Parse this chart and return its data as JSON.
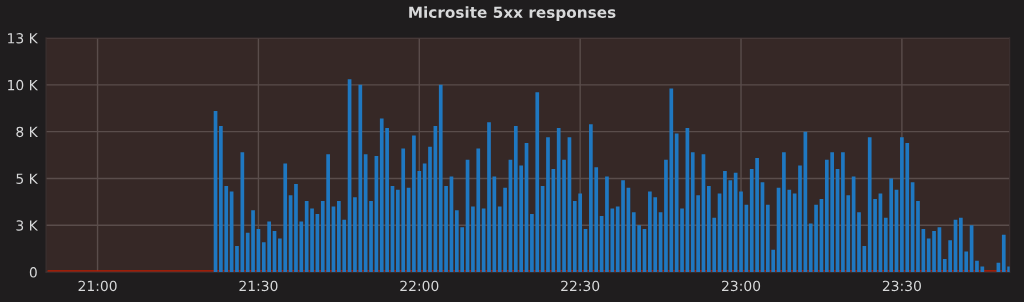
{
  "chart_data": {
    "type": "bar",
    "title": "Microsite 5xx responses",
    "x": [
      21.3667,
      21.3833,
      21.4,
      21.4167,
      21.4333,
      21.45,
      21.4667,
      21.4833,
      21.5,
      21.5167,
      21.5333,
      21.55,
      21.5667,
      21.5833,
      21.6,
      21.6167,
      21.6333,
      21.65,
      21.6667,
      21.6833,
      21.7,
      21.7167,
      21.7333,
      21.75,
      21.7667,
      21.7833,
      21.8,
      21.8167,
      21.8333,
      21.85,
      21.8667,
      21.8833,
      21.9,
      21.9167,
      21.9333,
      21.95,
      21.9667,
      21.9833,
      22.0,
      22.0167,
      22.0333,
      22.05,
      22.0667,
      22.0833,
      22.1,
      22.1167,
      22.1333,
      22.15,
      22.1667,
      22.1833,
      22.2,
      22.2167,
      22.2333,
      22.25,
      22.2667,
      22.2833,
      22.3,
      22.3167,
      22.3333,
      22.35,
      22.3667,
      22.3833,
      22.4,
      22.4167,
      22.4333,
      22.45,
      22.4667,
      22.4833,
      22.5,
      22.5167,
      22.5333,
      22.55,
      22.5667,
      22.5833,
      22.6,
      22.6167,
      22.6333,
      22.65,
      22.6667,
      22.6833,
      22.7,
      22.7167,
      22.7333,
      22.75,
      22.7667,
      22.7833,
      22.8,
      22.8167,
      22.8333,
      22.85,
      22.8667,
      22.8833,
      22.9,
      22.9167,
      22.9333,
      22.95,
      22.9667,
      22.9833,
      23.0,
      23.0167,
      23.0333,
      23.05,
      23.0667,
      23.0833,
      23.1,
      23.1167,
      23.1333,
      23.15,
      23.1667,
      23.1833,
      23.2,
      23.2167,
      23.2333,
      23.25,
      23.2667,
      23.2833,
      23.3,
      23.3167,
      23.3333,
      23.35,
      23.3667,
      23.3833,
      23.4,
      23.4167,
      23.4333,
      23.45,
      23.4667,
      23.4833,
      23.5,
      23.5167,
      23.5333,
      23.55,
      23.5667,
      23.5833,
      23.6,
      23.6167,
      23.6333,
      23.65,
      23.6667,
      23.6833,
      23.7,
      23.7167,
      23.7333,
      23.75,
      23.7667,
      23.7833,
      23.8,
      23.8167,
      23.8333
    ],
    "series": [
      {
        "color": "#1f78c1",
        "values": [
          8600,
          7800,
          4600,
          4300,
          1400,
          6400,
          2100,
          3300,
          2300,
          1600,
          2700,
          2200,
          1800,
          5800,
          4100,
          4700,
          2700,
          3800,
          3400,
          3100,
          3800,
          6300,
          3500,
          3800,
          2800,
          10300,
          4000,
          10000,
          6300,
          3800,
          6200,
          8200,
          7700,
          4600,
          4400,
          6600,
          4500,
          7300,
          5400,
          5800,
          6700,
          7800,
          10000,
          4600,
          5100,
          3300,
          2400,
          6000,
          3500,
          6600,
          3400,
          8000,
          5100,
          3500,
          4500,
          6000,
          7800,
          5700,
          6900,
          3100,
          9600,
          4600,
          7200,
          5500,
          7700,
          6000,
          7200,
          3800,
          4200,
          2300,
          7900,
          5600,
          3000,
          5100,
          3400,
          3500,
          4900,
          4500,
          3200,
          2500,
          2300,
          4300,
          4000,
          3200,
          6000,
          9800,
          7400,
          3400,
          7700,
          6400,
          4100,
          6300,
          4600,
          2900,
          4200,
          5400,
          4900,
          5300,
          4300,
          3600,
          5500,
          6100,
          4800,
          3600,
          1200,
          4500,
          6400,
          4400,
          4200,
          5700,
          7500,
          2600,
          3600,
          3900,
          6000,
          6400,
          5500,
          6400,
          4100,
          5100,
          3200,
          1400,
          7200,
          3900,
          4200,
          2900,
          5000,
          4400,
          7200,
          6900,
          4800,
          3800,
          2300,
          1800,
          2200,
          2400,
          700,
          1700,
          2800,
          2900,
          1100,
          2500,
          600,
          300,
          null,
          null,
          500,
          2000,
          300
        ]
      },
      {
        "type": "line",
        "color": "#bf1b00",
        "x": [
          20.85,
          23.83
        ],
        "values": [
          0,
          0
        ]
      }
    ],
    "xlim": [
      20.84,
      23.835
    ],
    "ylim": [
      0,
      12500
    ],
    "xticks": [
      {
        "value": 21,
        "label": "21:00"
      },
      {
        "value": 21.5,
        "label": "21:30"
      },
      {
        "value": 22,
        "label": "22:00"
      },
      {
        "value": 22.5,
        "label": "22:30"
      },
      {
        "value": 23,
        "label": "23:00"
      },
      {
        "value": 23.5,
        "label": "23:30"
      }
    ],
    "yticks": [
      {
        "value": 0,
        "label": "0"
      },
      {
        "value": 2500,
        "label": "3 K"
      },
      {
        "value": 5000,
        "label": "5 K"
      },
      {
        "value": 7500,
        "label": "8 K"
      },
      {
        "value": 10000,
        "label": "10 K"
      },
      {
        "value": 12500,
        "label": "13 K"
      }
    ],
    "grid": true,
    "legend": false
  }
}
